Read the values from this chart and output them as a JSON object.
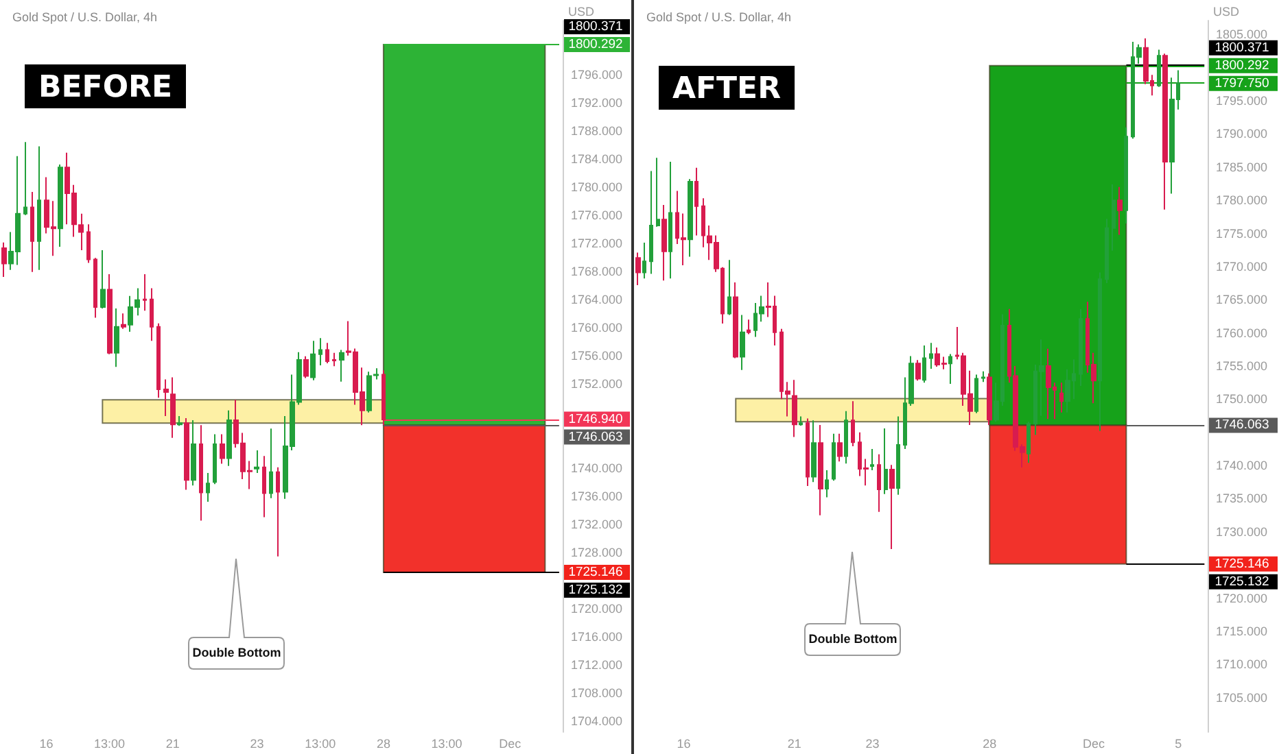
{
  "chart_data": [
    {
      "type": "candlestick",
      "title": "BEFORE",
      "subtitle": "Gold Spot / U.S. Dollar, 4h",
      "ylabel": "USD",
      "categories": [
        null,
        null,
        null,
        null,
        null,
        null,
        "16",
        null,
        null,
        null,
        null,
        null,
        null,
        null,
        null,
        "13:00",
        null,
        null,
        null,
        null,
        null,
        null,
        null,
        null,
        "21",
        null,
        null,
        null,
        null,
        null,
        null,
        null,
        null,
        null,
        null,
        null,
        "23",
        null,
        null,
        null,
        null,
        null,
        null,
        null,
        null,
        "13:00",
        null,
        null,
        null,
        null,
        null,
        null,
        null,
        null,
        "28",
        null,
        null,
        null,
        null,
        null,
        null,
        null,
        null,
        "13:00",
        null,
        null,
        null,
        null,
        null,
        null,
        null,
        null,
        "Dec",
        null,
        null,
        null,
        null,
        null,
        null,
        null
      ],
      "ohlc": [
        [
          1771.3,
          1772.1,
          1767.2,
          1769.1
        ],
        [
          1769.1,
          1773.6,
          1768.2,
          1770.8
        ],
        [
          1770.8,
          1784.4,
          1768.9,
          1776.2
        ],
        [
          1776.2,
          1786.4,
          1776.0,
          1777.1
        ],
        [
          1777.1,
          1779.3,
          1767.9,
          1772.3
        ],
        [
          1772.3,
          1785.8,
          1768.2,
          1778.1
        ],
        [
          1778.1,
          1781.4,
          1773.4,
          1774.3
        ],
        [
          1774.3,
          1778.0,
          1770.2,
          1774.1
        ],
        [
          1774.1,
          1783.2,
          1771.5,
          1782.8
        ],
        [
          1782.8,
          1784.9,
          1774.7,
          1779.1
        ],
        [
          1779.1,
          1780.3,
          1772.9,
          1774.7
        ],
        [
          1774.6,
          1776.2,
          1771.0,
          1773.6
        ],
        [
          1773.6,
          1774.7,
          1769.2,
          1769.7
        ],
        [
          1769.7,
          1769.9,
          1761.4,
          1762.9
        ],
        [
          1762.9,
          1771.0,
          1762.7,
          1765.4
        ],
        [
          1765.4,
          1767.6,
          1756.2,
          1756.4
        ],
        [
          1756.4,
          1762.7,
          1754.4,
          1760.1
        ],
        [
          1760.4,
          1762.0,
          1759.8,
          1760.1
        ],
        [
          1760.4,
          1764.5,
          1759.4,
          1762.9
        ],
        [
          1762.9,
          1765.6,
          1761.7,
          1763.9
        ],
        [
          1764.0,
          1767.6,
          1762.4,
          1763.9
        ],
        [
          1764.0,
          1765.6,
          1758.1,
          1760.1
        ],
        [
          1760.1,
          1760.6,
          1750.0,
          1751.2
        ],
        [
          1751.2,
          1752.6,
          1747.4,
          1750.8
        ],
        [
          1750.5,
          1752.9,
          1744.3,
          1746.2
        ],
        [
          1746.2,
          1747.4,
          1746.0,
          1746.4
        ],
        [
          1746.4,
          1747.1,
          1736.9,
          1738.3
        ],
        [
          1738.3,
          1746.8,
          1737.5,
          1743.4
        ],
        [
          1743.4,
          1746.1,
          1732.5,
          1736.5
        ],
        [
          1736.5,
          1739.3,
          1735.2,
          1737.8
        ],
        [
          1738.0,
          1744.8,
          1737.7,
          1743.4
        ],
        [
          1743.4,
          1744.8,
          1740.6,
          1741.4
        ],
        [
          1741.4,
          1748.2,
          1740.3,
          1746.8
        ],
        [
          1746.8,
          1749.7,
          1742.9,
          1743.5
        ],
        [
          1743.5,
          1745.0,
          1738.4,
          1739.5
        ],
        [
          1739.6,
          1741.0,
          1737.0,
          1739.5
        ],
        [
          1739.9,
          1742.5,
          1739.3,
          1740.1
        ],
        [
          1740.1,
          1741.7,
          1733.0,
          1736.4
        ],
        [
          1736.4,
          1745.6,
          1735.7,
          1739.4
        ],
        [
          1739.4,
          1740.1,
          1727.4,
          1736.6
        ],
        [
          1736.6,
          1747.4,
          1735.6,
          1743.1
        ],
        [
          1743.1,
          1753.3,
          1742.5,
          1749.4
        ],
        [
          1749.4,
          1756.5,
          1749.0,
          1755.4
        ],
        [
          1755.4,
          1755.9,
          1752.8,
          1753.1
        ],
        [
          1752.9,
          1758.1,
          1752.5,
          1756.2
        ],
        [
          1756.2,
          1758.5,
          1754.6,
          1756.8
        ],
        [
          1756.8,
          1757.8,
          1754.9,
          1755.2
        ],
        [
          1755.4,
          1756.4,
          1754.5,
          1755.3
        ],
        [
          1755.4,
          1756.8,
          1752.3,
          1756.4
        ],
        [
          1756.6,
          1760.9,
          1756.0,
          1756.5
        ],
        [
          1756.5,
          1757.0,
          1749.0,
          1750.8
        ],
        [
          1750.8,
          1754.3,
          1746.1,
          1748.2
        ],
        [
          1748.2,
          1753.7,
          1747.9,
          1753.1
        ],
        [
          1753.2,
          1754.2,
          1752.6,
          1753.3
        ],
        [
          1753.3,
          1753.9,
          1746.1,
          1746.9
        ],
        null,
        null,
        null,
        null,
        null,
        null,
        null,
        null,
        null,
        null,
        null,
        null,
        null,
        null,
        null,
        null,
        null,
        null,
        null,
        null,
        null,
        null,
        null,
        null,
        null
      ],
      "ylim": [
        1702.4,
        1803.7
      ],
      "yticks": [
        {
          "value": 1704,
          "label": "1704.000"
        },
        {
          "value": 1708,
          "label": "1708.000"
        },
        {
          "value": 1712,
          "label": "1712.000"
        },
        {
          "value": 1716,
          "label": "1716.000"
        },
        {
          "value": 1720,
          "label": "1720.000"
        },
        {
          "value": 1728,
          "label": "1728.000"
        },
        {
          "value": 1732,
          "label": "1732.000"
        },
        {
          "value": 1736,
          "label": "1736.000"
        },
        {
          "value": 1740,
          "label": "1740.000"
        },
        {
          "value": 1752,
          "label": "1752.000"
        },
        {
          "value": 1756,
          "label": "1756.000"
        },
        {
          "value": 1760,
          "label": "1760.000"
        },
        {
          "value": 1764,
          "label": "1764.000"
        },
        {
          "value": 1768,
          "label": "1768.000"
        },
        {
          "value": 1772,
          "label": "1772.000"
        },
        {
          "value": 1776,
          "label": "1776.000"
        },
        {
          "value": 1780,
          "label": "1780.000"
        },
        {
          "value": 1784,
          "label": "1784.000"
        },
        {
          "value": 1788,
          "label": "1788.000"
        },
        {
          "value": 1792,
          "label": "1792.000"
        },
        {
          "value": 1796,
          "label": "1796.000"
        }
      ],
      "ref_lines": [
        {
          "axis": "y",
          "value": 1800.371,
          "label": "1800.371",
          "color": "#000000"
        },
        {
          "axis": "y",
          "value": 1800.292,
          "label": "1800.292",
          "color": "#2db336"
        },
        {
          "axis": "y",
          "value": 1746.94,
          "label": "1746.940",
          "color": "#f23557"
        },
        {
          "axis": "y",
          "value": 1746.063,
          "label": "1746.063",
          "color": "#5a5a5a"
        },
        {
          "axis": "y",
          "value": 1725.146,
          "label": "1725.146",
          "color": "#f2221b"
        },
        {
          "axis": "y",
          "value": 1725.132,
          "label": "1725.132",
          "color": "#000000"
        }
      ],
      "bands": [
        {
          "axis": "y",
          "from": 1746.4,
          "to": 1749.7,
          "color": "#fdf0a5"
        },
        {
          "axis": "y",
          "from": 1746.063,
          "to": 1800.292,
          "color": "#2db336"
        },
        {
          "axis": "y",
          "from": 1725.146,
          "to": 1746.063,
          "color": "#f2312b"
        }
      ],
      "annotations": [
        "Double Bottom"
      ]
    },
    {
      "type": "candlestick",
      "title": "AFTER",
      "subtitle": "Gold Spot / U.S. Dollar, 4h",
      "ylabel": "USD",
      "categories": [
        null,
        null,
        null,
        null,
        null,
        null,
        null,
        "16",
        null,
        null,
        null,
        null,
        null,
        null,
        null,
        null,
        null,
        null,
        null,
        null,
        null,
        null,
        null,
        null,
        "21",
        null,
        null,
        null,
        null,
        null,
        null,
        null,
        null,
        null,
        null,
        null,
        "23",
        null,
        null,
        null,
        null,
        null,
        null,
        null,
        null,
        null,
        null,
        null,
        null,
        null,
        null,
        null,
        null,
        null,
        "28",
        null,
        null,
        null,
        null,
        null,
        null,
        null,
        null,
        null,
        null,
        null,
        null,
        null,
        null,
        null,
        "Dec",
        null,
        null,
        null,
        null,
        null,
        null,
        null,
        null,
        null,
        null,
        null,
        null,
        "5",
        null,
        null,
        null,
        null
      ],
      "ohlc": [
        [
          1771.3,
          1772.1,
          1767.2,
          1769.1
        ],
        [
          1769.1,
          1773.6,
          1768.2,
          1770.8
        ],
        [
          1770.8,
          1784.4,
          1768.9,
          1776.2
        ],
        [
          1776.2,
          1786.4,
          1776.0,
          1777.1
        ],
        [
          1777.1,
          1779.3,
          1767.9,
          1772.3
        ],
        [
          1772.3,
          1785.8,
          1768.2,
          1778.1
        ],
        [
          1778.1,
          1781.4,
          1773.4,
          1774.3
        ],
        [
          1774.3,
          1778.0,
          1770.2,
          1774.1
        ],
        [
          1774.1,
          1783.2,
          1771.5,
          1782.8
        ],
        [
          1782.8,
          1784.9,
          1774.7,
          1779.1
        ],
        [
          1779.1,
          1780.3,
          1772.9,
          1774.7
        ],
        [
          1774.6,
          1776.2,
          1771.0,
          1773.6
        ],
        [
          1773.6,
          1774.7,
          1769.2,
          1769.7
        ],
        [
          1769.7,
          1769.9,
          1761.4,
          1762.9
        ],
        [
          1762.9,
          1771.0,
          1762.7,
          1765.4
        ],
        [
          1765.4,
          1767.6,
          1756.2,
          1756.4
        ],
        [
          1756.4,
          1762.7,
          1754.4,
          1760.1
        ],
        [
          1760.4,
          1762.0,
          1759.8,
          1760.1
        ],
        [
          1760.4,
          1764.5,
          1759.4,
          1762.9
        ],
        [
          1762.9,
          1765.6,
          1761.7,
          1763.9
        ],
        [
          1764.0,
          1767.6,
          1762.4,
          1763.9
        ],
        [
          1764.0,
          1765.6,
          1758.1,
          1760.1
        ],
        [
          1760.1,
          1760.6,
          1750.0,
          1751.2
        ],
        [
          1751.2,
          1752.6,
          1747.4,
          1750.8
        ],
        [
          1750.5,
          1752.9,
          1744.3,
          1746.2
        ],
        [
          1746.2,
          1747.4,
          1746.0,
          1746.4
        ],
        [
          1746.4,
          1747.1,
          1736.9,
          1738.3
        ],
        [
          1738.3,
          1746.8,
          1737.5,
          1743.4
        ],
        [
          1743.4,
          1746.1,
          1732.5,
          1736.5
        ],
        [
          1736.5,
          1739.3,
          1735.2,
          1737.8
        ],
        [
          1738.0,
          1744.8,
          1737.7,
          1743.4
        ],
        [
          1743.4,
          1744.8,
          1740.6,
          1741.4
        ],
        [
          1741.4,
          1748.2,
          1740.3,
          1746.8
        ],
        [
          1746.8,
          1749.7,
          1742.9,
          1743.5
        ],
        [
          1743.5,
          1745.0,
          1738.4,
          1739.5
        ],
        [
          1739.6,
          1741.0,
          1737.0,
          1739.5
        ],
        [
          1739.9,
          1742.5,
          1739.3,
          1740.1
        ],
        [
          1740.1,
          1741.7,
          1733.0,
          1736.4
        ],
        [
          1736.4,
          1745.6,
          1735.7,
          1739.4
        ],
        [
          1739.4,
          1740.1,
          1727.4,
          1736.6
        ],
        [
          1736.6,
          1747.4,
          1735.6,
          1743.1
        ],
        [
          1743.1,
          1753.3,
          1742.5,
          1749.4
        ],
        [
          1749.4,
          1756.5,
          1749.0,
          1755.4
        ],
        [
          1755.4,
          1755.9,
          1752.8,
          1753.1
        ],
        [
          1752.9,
          1758.1,
          1752.5,
          1756.2
        ],
        [
          1756.2,
          1758.5,
          1754.6,
          1756.8
        ],
        [
          1756.8,
          1757.8,
          1754.9,
          1755.2
        ],
        [
          1755.4,
          1756.4,
          1754.5,
          1755.3
        ],
        [
          1755.4,
          1756.8,
          1752.3,
          1756.4
        ],
        [
          1756.6,
          1760.9,
          1756.0,
          1756.5
        ],
        [
          1756.5,
          1757.0,
          1749.0,
          1750.8
        ],
        [
          1750.8,
          1754.3,
          1746.1,
          1748.2
        ],
        [
          1748.2,
          1753.7,
          1747.9,
          1753.1
        ],
        [
          1753.2,
          1754.2,
          1752.6,
          1753.3
        ],
        [
          1753.3,
          1753.9,
          1746.1,
          1746.9
        ],
        [
          1746.9,
          1752.5,
          1746.6,
          1749.7
        ],
        [
          1749.7,
          1762.8,
          1749.0,
          1761.1
        ],
        [
          1761.1,
          1763.6,
          1752.5,
          1753.5
        ],
        [
          1753.5,
          1755.0,
          1742.2,
          1742.8
        ],
        [
          1742.8,
          1743.2,
          1739.7,
          1742.0
        ],
        [
          1741.8,
          1746.6,
          1740.4,
          1746.3
        ],
        [
          1746.3,
          1755.2,
          1744.6,
          1754.2
        ],
        [
          1754.2,
          1759.0,
          1747.5,
          1755.0
        ],
        [
          1755.0,
          1757.6,
          1747.0,
          1751.8
        ],
        [
          1751.8,
          1752.5,
          1747.0,
          1751.4
        ],
        [
          1750.9,
          1752.5,
          1748.0,
          1749.7
        ],
        [
          1749.7,
          1754.5,
          1748.0,
          1752.8
        ],
        [
          1752.8,
          1756.0,
          1750.0,
          1753.8
        ],
        [
          1753.8,
          1763.6,
          1752.0,
          1762.1
        ],
        [
          1762.1,
          1764.7,
          1754.0,
          1755.2
        ],
        [
          1755.2,
          1757.0,
          1749.4,
          1752.8
        ],
        [
          1752.8,
          1769.1,
          1745.2,
          1768.1
        ],
        [
          1768.1,
          1777.2,
          1767.5,
          1775.8
        ],
        [
          1775.8,
          1782.4,
          1772.4,
          1780.0
        ],
        [
          1780.0,
          1782.0,
          1774.8,
          1778.5
        ],
        [
          1778.5,
          1791.0,
          1776.5,
          1789.6
        ],
        [
          1789.6,
          1803.9,
          1789.3,
          1801.6
        ],
        [
          1801.6,
          1803.5,
          1800.6,
          1803.0
        ],
        [
          1803.0,
          1804.4,
          1797.5,
          1798.0
        ],
        [
          1798.0,
          1798.9,
          1795.8,
          1797.3
        ],
        [
          1797.3,
          1802.7,
          1797.1,
          1801.8
        ],
        [
          1801.8,
          1802.1,
          1778.6,
          1785.8
        ],
        [
          1785.8,
          1798.5,
          1781.0,
          1795.2
        ],
        [
          1795.2,
          1799.6,
          1793.7,
          1797.7
        ],
        null,
        null,
        null,
        null
      ],
      "ylim": [
        1699.8,
        1807.1
      ],
      "yticks": [
        {
          "value": 1705,
          "label": "1705.000"
        },
        {
          "value": 1710,
          "label": "1710.000"
        },
        {
          "value": 1715,
          "label": "1715.000"
        },
        {
          "value": 1720,
          "label": "1720.000"
        },
        {
          "value": 1730,
          "label": "1730.000"
        },
        {
          "value": 1735,
          "label": "1735.000"
        },
        {
          "value": 1740,
          "label": "1740.000"
        },
        {
          "value": 1750,
          "label": "1750.000"
        },
        {
          "value": 1755,
          "label": "1755.000"
        },
        {
          "value": 1760,
          "label": "1760.000"
        },
        {
          "value": 1765,
          "label": "1765.000"
        },
        {
          "value": 1770,
          "label": "1770.000"
        },
        {
          "value": 1775,
          "label": "1775.000"
        },
        {
          "value": 1780,
          "label": "1780.000"
        },
        {
          "value": 1785,
          "label": "1785.000"
        },
        {
          "value": 1790,
          "label": "1790.000"
        },
        {
          "value": 1795,
          "label": "1795.000"
        },
        {
          "value": 1805,
          "label": "1805.000"
        }
      ],
      "ref_lines": [
        {
          "axis": "y",
          "value": 1800.371,
          "label": "1800.371",
          "color": "#000000"
        },
        {
          "axis": "y",
          "value": 1800.292,
          "label": "1800.292",
          "color": "#16a21a"
        },
        {
          "axis": "y",
          "value": 1797.75,
          "label": "1797.750",
          "color": "#16a21a"
        },
        {
          "axis": "y",
          "value": 1746.063,
          "label": "1746.063",
          "color": "#5a5a5a"
        },
        {
          "axis": "y",
          "value": 1725.146,
          "label": "1725.146",
          "color": "#f2221b"
        },
        {
          "axis": "y",
          "value": 1725.132,
          "label": "1725.132",
          "color": "#000000"
        }
      ],
      "bands": [
        {
          "axis": "y",
          "from": 1746.6,
          "to": 1750.1,
          "color": "#fdf0a5"
        },
        {
          "axis": "y",
          "from": 1746.063,
          "to": 1800.292,
          "color": "#16a21a"
        },
        {
          "axis": "y",
          "from": 1725.146,
          "to": 1746.063,
          "color": "#f2322b"
        }
      ],
      "annotations": [
        "Double Bottom"
      ]
    }
  ]
}
